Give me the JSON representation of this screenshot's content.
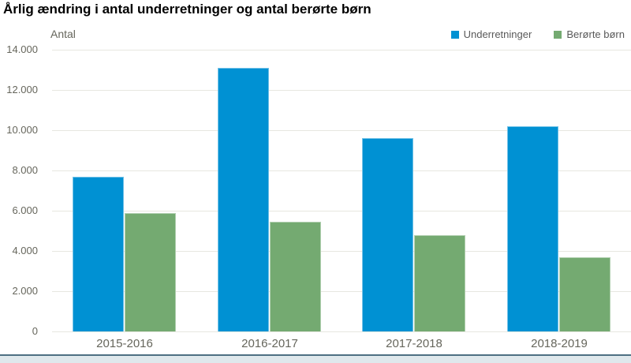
{
  "title": "Årlig ændring i antal underretninger og antal berørte børn",
  "axis_label": "Antal",
  "legend": [
    {
      "label": "Underretninger",
      "color": "#0091d3"
    },
    {
      "label": "Berørte børn",
      "color": "#74aa71"
    }
  ],
  "colors": {
    "bar_blue": "#0091d3",
    "bar_green": "#74aa71",
    "gridline": "#e7e7e0",
    "axis_text": "#66665c",
    "legend_text": "#595959",
    "footer_line": "#4e7083",
    "footer_band": "#dfe8ec"
  },
  "chart_data": {
    "type": "bar",
    "title": "Årlig ændring i antal underretninger og antal berørte børn",
    "categories": [
      "2015-2016",
      "2016-2017",
      "2017-2018",
      "2018-2019"
    ],
    "series": [
      {
        "name": "Underretninger",
        "color": "#0091d3",
        "values": [
          7700,
          13100,
          9600,
          10200
        ]
      },
      {
        "name": "Berørte børn",
        "color": "#74aa71",
        "values": [
          5900,
          5450,
          4800,
          3700
        ]
      }
    ],
    "xlabel": "",
    "ylabel": "Antal",
    "ylim": [
      0,
      14000
    ],
    "ytick_step": 2000,
    "ytick_labels": [
      "0",
      "2.000",
      "4.000",
      "6.000",
      "8.000",
      "10.000",
      "12.000",
      "14.000"
    ],
    "grid": true,
    "legend_position": "top-right"
  }
}
